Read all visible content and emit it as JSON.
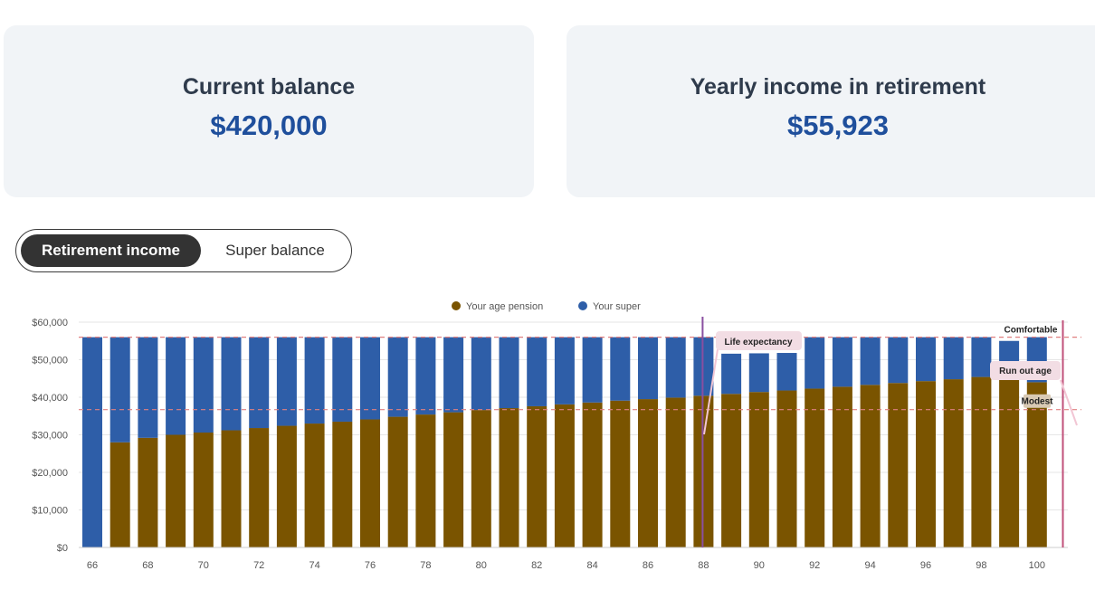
{
  "summary": {
    "current_balance": {
      "label": "Current balance",
      "value": "$420,000"
    },
    "yearly_income": {
      "label": "Yearly income in retirement",
      "value": "$55,923"
    }
  },
  "view_toggle": {
    "active": "Retirement income",
    "options": [
      "Retirement income",
      "Super balance"
    ]
  },
  "colors": {
    "pension": "#7a5400",
    "super": "#2e5ea8",
    "life_expectancy_line": "#8a4fa0",
    "run_out_line": "#c0507a",
    "standard_line": "#e08080"
  },
  "chart_data": {
    "type": "bar",
    "stacked": true,
    "legend_position": "top-center",
    "categories": [
      66,
      67,
      68,
      69,
      70,
      71,
      72,
      73,
      74,
      75,
      76,
      77,
      78,
      79,
      80,
      81,
      82,
      83,
      84,
      85,
      86,
      87,
      88,
      89,
      90,
      91,
      92,
      93,
      94,
      95,
      96,
      97,
      98,
      99,
      100
    ],
    "x_tick_labels": [
      "66",
      "68",
      "70",
      "72",
      "74",
      "76",
      "78",
      "80",
      "82",
      "84",
      "86",
      "88",
      "90",
      "92",
      "94",
      "96",
      "98",
      "100"
    ],
    "y_tick_labels": [
      "$0",
      "$10,000",
      "$20,000",
      "$30,000",
      "$40,000",
      "$50,000",
      "$60,000"
    ],
    "ylim": [
      0,
      60000
    ],
    "series": [
      {
        "name": "Your age pension",
        "color": "#7a5400",
        "values": [
          0,
          28000,
          29200,
          30000,
          30600,
          31200,
          31800,
          32400,
          33000,
          33500,
          34100,
          34800,
          35400,
          36000,
          36600,
          37100,
          37600,
          38100,
          38600,
          39100,
          39500,
          39900,
          40400,
          40900,
          41400,
          41800,
          42300,
          42800,
          43300,
          43800,
          44300,
          44800,
          45400,
          45000,
          44000
        ]
      },
      {
        "name": "Your super",
        "color": "#2e5ea8",
        "values": [
          56000,
          28000,
          26800,
          26000,
          25400,
          24800,
          24200,
          23600,
          23000,
          22500,
          21900,
          21200,
          20600,
          20000,
          19400,
          18900,
          18400,
          17900,
          17400,
          16900,
          16500,
          16100,
          15600,
          10700,
          10300,
          10000,
          13700,
          13200,
          12700,
          12200,
          11700,
          11200,
          10600,
          10000,
          12000
        ]
      }
    ],
    "reference_lines": [
      {
        "label": "Comfortable",
        "y": 56000
      },
      {
        "label": "Modest",
        "y": 36700
      }
    ],
    "markers": [
      {
        "label": "Life expectancy",
        "x": 88
      },
      {
        "label": "Run out age",
        "x": 101
      }
    ]
  }
}
